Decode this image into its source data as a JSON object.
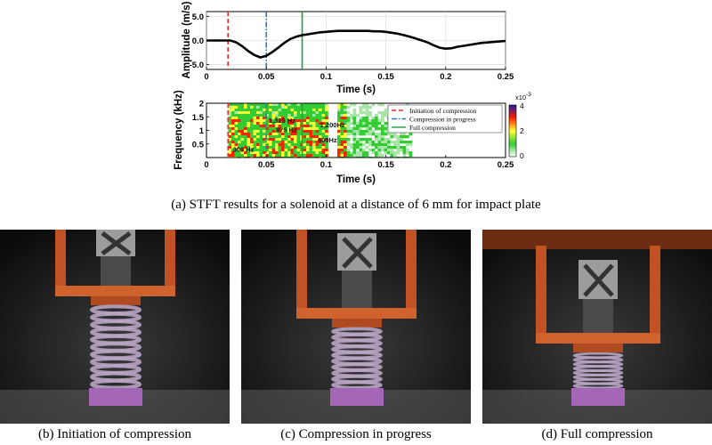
{
  "chart_data": [
    {
      "type": "line",
      "title": "",
      "xlabel": "Time (s)",
      "ylabel": "Amplitude (m/s)",
      "xlim": [
        0,
        0.25
      ],
      "ylim": [
        -6,
        6
      ],
      "xticks": [
        0,
        0.05,
        0.1,
        0.15,
        0.2,
        0.25
      ],
      "xtick_labels": [
        "0",
        "0.05",
        "0.1",
        "0.15",
        "0.2",
        "0.25"
      ],
      "yticks": [
        -5,
        0,
        5
      ],
      "ytick_labels": [
        "-5.0",
        "0.0",
        "5.0"
      ],
      "grid": true,
      "series": [
        {
          "x": [
            0,
            0.005,
            0.01,
            0.015,
            0.02,
            0.025,
            0.03,
            0.035,
            0.04,
            0.045,
            0.05,
            0.055,
            0.06,
            0.065,
            0.07,
            0.075,
            0.08,
            0.085,
            0.09,
            0.095,
            0.1,
            0.105,
            0.11,
            0.115,
            0.12,
            0.125,
            0.13,
            0.135,
            0.14,
            0.145,
            0.15,
            0.155,
            0.16,
            0.165,
            0.17,
            0.175,
            0.18,
            0.185,
            0.19,
            0.195,
            0.2,
            0.205,
            0.21,
            0.215,
            0.22,
            0.225,
            0.23,
            0.235,
            0.24,
            0.245,
            0.25
          ],
          "values": [
            0,
            0,
            0,
            0,
            0,
            -0.4,
            -1.2,
            -2.2,
            -3.0,
            -3.5,
            -3.2,
            -2.4,
            -1.5,
            -0.5,
            0.3,
            0.8,
            1.1,
            1.3,
            1.5,
            1.7,
            1.8,
            1.9,
            2.0,
            2.0,
            2.0,
            2.0,
            2.0,
            2.0,
            1.9,
            1.9,
            1.8,
            1.6,
            1.4,
            1.1,
            0.8,
            0.4,
            0,
            -0.4,
            -1.0,
            -1.5,
            -1.7,
            -1.6,
            -1.3,
            -1.1,
            -0.9,
            -0.7,
            -0.5,
            -0.4,
            -0.3,
            -0.2,
            -0.1
          ]
        }
      ],
      "vlines": [
        {
          "x": 0.018,
          "color": "#e8332a",
          "style": "dashed"
        },
        {
          "x": 0.05,
          "color": "#2b79c2",
          "style": "dashdot"
        },
        {
          "x": 0.08,
          "color": "#19a341",
          "style": "solid"
        }
      ]
    },
    {
      "type": "heatmap",
      "title": "",
      "xlabel": "Time (s)",
      "ylabel": "Frequency (kHz)",
      "xlim": [
        0,
        0.25
      ],
      "ylim": [
        0,
        2
      ],
      "xticks": [
        0,
        0.05,
        0.1,
        0.15,
        0.2,
        0.25
      ],
      "xtick_labels": [
        "0",
        "0.05",
        "0.1",
        "0.15",
        "0.2",
        "0.25"
      ],
      "yticks": [
        0.5,
        1,
        1.5,
        2
      ],
      "ytick_labels": [
        "0.5",
        "1",
        "1.5",
        "2"
      ],
      "colorbar": {
        "min": 0,
        "max": 4,
        "ticks": [
          "4",
          "2",
          "0"
        ],
        "exponent_label": "x10",
        "exponent": "-3"
      },
      "colors": {
        "low": "#ffffff",
        "mid1": "#33cc33",
        "mid2": "#ffff33",
        "high": "#ff2200",
        "top": "#1a1aa0"
      },
      "annotations": [
        {
          "text": "1,325 Hz",
          "x": 0.052,
          "y": 1.28
        },
        {
          "text": "975 Hz",
          "x": 0.058,
          "y": 0.93
        },
        {
          "text": "1,200Hz",
          "x": 0.095,
          "y": 1.12
        },
        {
          "text": "600Hz",
          "x": 0.093,
          "y": 0.55
        },
        {
          "text": "300 Hz",
          "x": 0.022,
          "y": 0.22
        }
      ],
      "legend": {
        "position": "top-right",
        "entries": [
          {
            "label": "Initiation of compression",
            "color": "#e8332a",
            "style": "dashed"
          },
          {
            "label": "Compression in progress",
            "color": "#2b79c2",
            "style": "dashdot"
          },
          {
            "label": "Full compression",
            "color": "#19a341",
            "style": "solid"
          }
        ]
      }
    }
  ],
  "figure": {
    "caption_a": "(a)  STFT results for a solenoid at a distance of 6 mm for impact plate"
  },
  "photos": [
    {
      "caption": "(b)  Initiation of compression",
      "state": "initiation"
    },
    {
      "caption": "(c)  Compression in progress",
      "state": "in-progress"
    },
    {
      "caption": "(d)  Full compression",
      "state": "full"
    }
  ]
}
